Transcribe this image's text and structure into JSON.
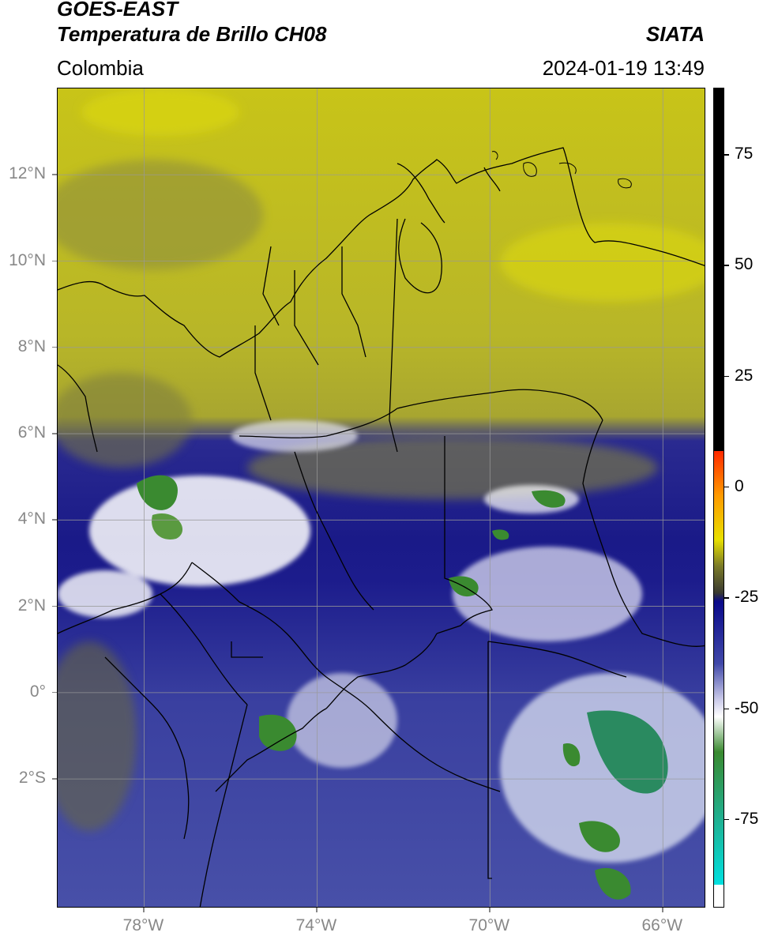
{
  "header": {
    "title_line1": "GOES-EAST",
    "title_line2": "Temperatura de Brillo CH08",
    "region": "Colombia",
    "organization": "SIATA",
    "timestamp": "2024-01-19 13:49"
  },
  "map": {
    "lon_range": [
      -80,
      -65
    ],
    "lat_range": [
      -5,
      14
    ],
    "lat_ticks": [
      {
        "value": 12,
        "label": "12°N"
      },
      {
        "value": 10,
        "label": "10°N"
      },
      {
        "value": 8,
        "label": "8°N"
      },
      {
        "value": 6,
        "label": "6°N"
      },
      {
        "value": 4,
        "label": "4°N"
      },
      {
        "value": 2,
        "label": "2°N"
      },
      {
        "value": 0,
        "label": "0°"
      },
      {
        "value": -2,
        "label": "2°S"
      }
    ],
    "lon_ticks": [
      {
        "value": -78,
        "label": "78°W"
      },
      {
        "value": -74,
        "label": "74°W"
      },
      {
        "value": -70,
        "label": "70°W"
      },
      {
        "value": -66,
        "label": "66°W"
      }
    ],
    "grid": true
  },
  "colorbar": {
    "range": [
      -95,
      90
    ],
    "ticks": [
      {
        "value": 75,
        "label": "75"
      },
      {
        "value": 50,
        "label": "50"
      },
      {
        "value": 25,
        "label": "25"
      },
      {
        "value": 0,
        "label": "0"
      },
      {
        "value": -25,
        "label": "-25"
      },
      {
        "value": -50,
        "label": "-50"
      },
      {
        "value": -75,
        "label": "-75"
      }
    ],
    "colors": {
      "black": "#000000",
      "red": "#ff2a00",
      "orange": "#ff9a00",
      "yellow": "#e8e000",
      "olive": "#7a7a28",
      "darkgray": "#3a3a30",
      "navy": "#0a0a8a",
      "blue": "#4048a8",
      "lavender": "#c8c8e8",
      "white": "#ffffff",
      "green": "#3a8a30",
      "teal": "#20b090",
      "cyan": "#00e0e0"
    }
  }
}
